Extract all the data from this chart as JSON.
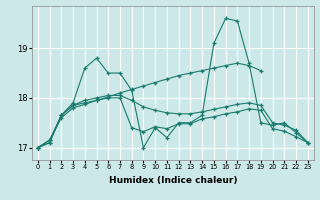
{
  "xlabel": "Humidex (Indice chaleur)",
  "ylim": [
    16.75,
    19.85
  ],
  "yticks": [
    17,
    18,
    19
  ],
  "xticks": [
    0,
    1,
    2,
    3,
    4,
    5,
    6,
    7,
    8,
    9,
    10,
    11,
    12,
    13,
    14,
    15,
    16,
    17,
    18,
    19,
    20,
    21,
    22,
    23
  ],
  "color": "#1a7a6e",
  "bg_color": "#cce8e8",
  "grid_color": "#ffffff",
  "s1y": [
    17.0,
    17.1,
    17.65,
    17.9,
    18.6,
    18.8,
    18.5,
    18.5,
    18.15,
    17.0,
    17.4,
    17.2,
    17.5,
    17.5,
    17.65,
    19.1,
    19.6,
    19.55,
    18.7,
    17.5,
    17.45,
    17.5,
    17.3,
    17.1
  ],
  "s2y": [
    17.0,
    17.15,
    17.6,
    17.8,
    17.87,
    17.95,
    18.02,
    18.1,
    18.17,
    18.24,
    18.31,
    18.38,
    18.45,
    18.5,
    18.55,
    18.6,
    18.65,
    18.7,
    18.65,
    18.55,
    null,
    null,
    null,
    null
  ],
  "s3y": [
    17.0,
    17.15,
    17.65,
    17.85,
    17.95,
    18.0,
    18.05,
    18.05,
    17.95,
    17.82,
    17.75,
    17.7,
    17.68,
    17.68,
    17.72,
    17.77,
    17.82,
    17.87,
    17.9,
    17.85,
    17.5,
    17.45,
    17.35,
    17.1
  ],
  "s4y": [
    17.0,
    17.1,
    17.65,
    17.85,
    17.9,
    17.95,
    18.0,
    18.0,
    17.4,
    17.32,
    17.42,
    17.38,
    17.48,
    17.48,
    17.58,
    17.62,
    17.68,
    17.72,
    17.78,
    17.75,
    17.38,
    17.33,
    17.22,
    17.1
  ]
}
